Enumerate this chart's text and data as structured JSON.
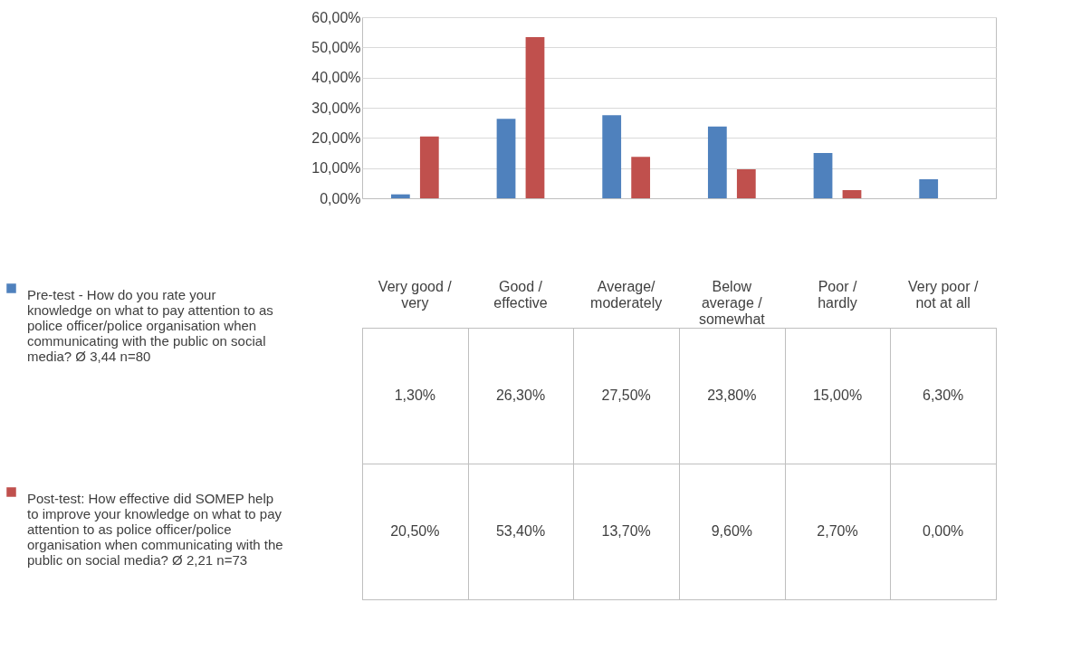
{
  "chart_data": {
    "type": "bar",
    "categories": [
      "Very good / very",
      "Good / effective",
      "Average/ moderately",
      "Below average / somewhat",
      "Poor / hardly",
      "Very poor / not at all"
    ],
    "series": [
      {
        "name": "Pre-test - How do you rate your knowledge on what to pay attention to as police officer/police organisation when communicating with the public on social media? Ø 3,44 n=80",
        "color": "#4f81bd",
        "values": [
          1.3,
          26.3,
          27.5,
          23.8,
          15.0,
          6.3
        ],
        "value_labels": [
          "1,30%",
          "26,30%",
          "27,50%",
          "23,80%",
          "15,00%",
          "6,30%"
        ]
      },
      {
        "name": "Post-test: How effective did SOMEP help to improve your knowledge on what to pay attention to as police officer/police organisation when communicating with the public on social media? Ø 2,21 n=73",
        "color": "#c0504d",
        "values": [
          20.5,
          53.4,
          13.7,
          9.6,
          2.7,
          0.0
        ],
        "value_labels": [
          "20,50%",
          "53,40%",
          "13,70%",
          "9,60%",
          "2,70%",
          "0,00%"
        ]
      }
    ],
    "ylim": [
      0,
      60
    ],
    "yticks": [
      {
        "value": 0,
        "label": "0,00%"
      },
      {
        "value": 10,
        "label": "10,00%"
      },
      {
        "value": 20,
        "label": "20,00%"
      },
      {
        "value": 30,
        "label": "30,00%"
      },
      {
        "value": 40,
        "label": "40,00%"
      },
      {
        "value": 50,
        "label": "50,00%"
      },
      {
        "value": 60,
        "label": "60,00%"
      }
    ],
    "grid": "y",
    "legend": "bottom"
  }
}
